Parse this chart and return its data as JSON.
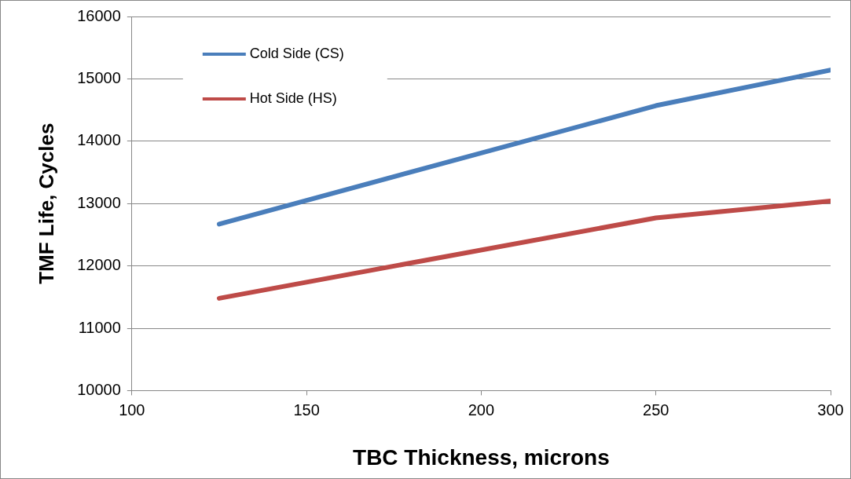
{
  "chart_data": {
    "type": "line",
    "xlabel": "TBC Thickness, microns",
    "ylabel": "TMF Life, Cycles",
    "x": [
      125,
      250,
      300
    ],
    "series": [
      {
        "name": "Cold Side (CS)",
        "color": "#4a7ebb",
        "values": [
          12670,
          14570,
          15140
        ]
      },
      {
        "name": "Hot Side (HS)",
        "color": "#be4b48",
        "values": [
          11480,
          12770,
          13040
        ]
      }
    ],
    "xlim": [
      100,
      300
    ],
    "xticks": [
      100,
      150,
      200,
      250,
      300
    ],
    "ylim": [
      10000,
      16000
    ],
    "yticks": [
      10000,
      11000,
      12000,
      13000,
      14000,
      15000,
      16000
    ],
    "grid": "y",
    "legend": "top left",
    "marker": "none",
    "line_style": "solid"
  }
}
